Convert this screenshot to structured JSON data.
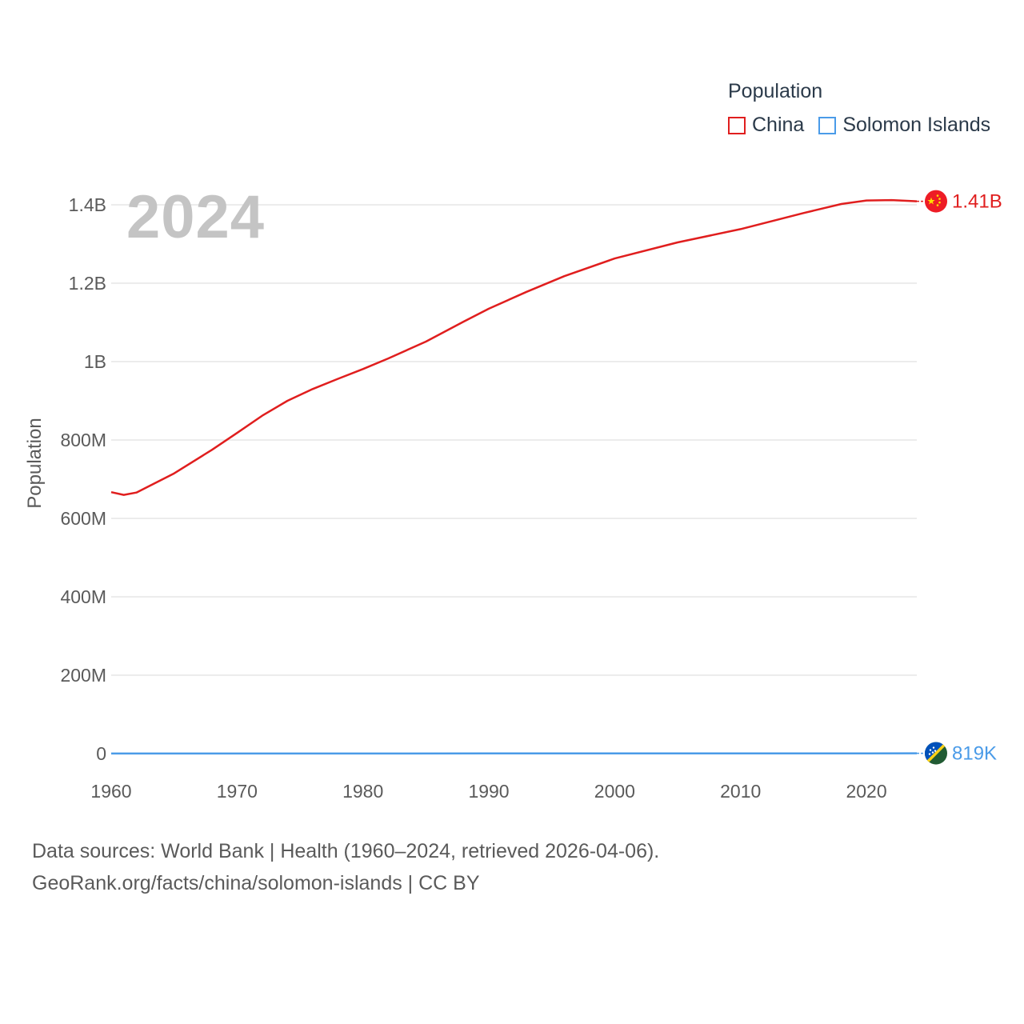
{
  "legend": {
    "title": "Population",
    "items": [
      {
        "label": "China",
        "color": "#e01e1e"
      },
      {
        "label": "Solomon Islands",
        "color": "#4a9be8"
      }
    ]
  },
  "year_label": "2024",
  "footer": {
    "line1": "Data sources: World Bank | Health (1960–2024, retrieved 2026-04-06).",
    "line2": "GeoRank.org/facts/china/solomon-islands | CC BY"
  },
  "chart_data": {
    "type": "line",
    "title": "",
    "xlabel": "",
    "ylabel": "Population",
    "xlim": [
      1960,
      2024
    ],
    "ylim": [
      0,
      1400000000
    ],
    "x_ticks": [
      1960,
      1970,
      1980,
      1990,
      2000,
      2010,
      2020
    ],
    "x_tick_labels": [
      "1960",
      "1970",
      "1980",
      "1990",
      "2000",
      "2010",
      "2020"
    ],
    "y_ticks": [
      0,
      200000000,
      400000000,
      600000000,
      800000000,
      1000000000,
      1200000000,
      1400000000
    ],
    "y_tick_labels": [
      "0",
      "200M",
      "400M",
      "600M",
      "800M",
      "1B",
      "1.2B",
      "1.4B"
    ],
    "grid": true,
    "series": [
      {
        "name": "China",
        "color": "#e01e1e",
        "end_label": "1.41B",
        "x": [
          1960,
          1961,
          1962,
          1963,
          1965,
          1968,
          1970,
          1972,
          1974,
          1976,
          1978,
          1980,
          1982,
          1985,
          1988,
          1990,
          1993,
          1996,
          2000,
          2005,
          2010,
          2015,
          2018,
          2020,
          2022,
          2024
        ],
        "values": [
          667000000,
          660000000,
          666000000,
          682000000,
          715000000,
          775000000,
          818000000,
          862000000,
          900000000,
          930000000,
          956000000,
          981000000,
          1008000000,
          1051000000,
          1102000000,
          1135000000,
          1178000000,
          1218000000,
          1263000000,
          1304000000,
          1338000000,
          1379000000,
          1402000000,
          1411000000,
          1412000000,
          1409000000
        ]
      },
      {
        "name": "Solomon Islands",
        "color": "#4a9be8",
        "end_label": "819K",
        "x": [
          1960,
          1970,
          1980,
          1990,
          2000,
          2010,
          2020,
          2024
        ],
        "values": [
          118000,
          161000,
          230000,
          312000,
          412000,
          528000,
          703000,
          819000
        ]
      }
    ]
  }
}
